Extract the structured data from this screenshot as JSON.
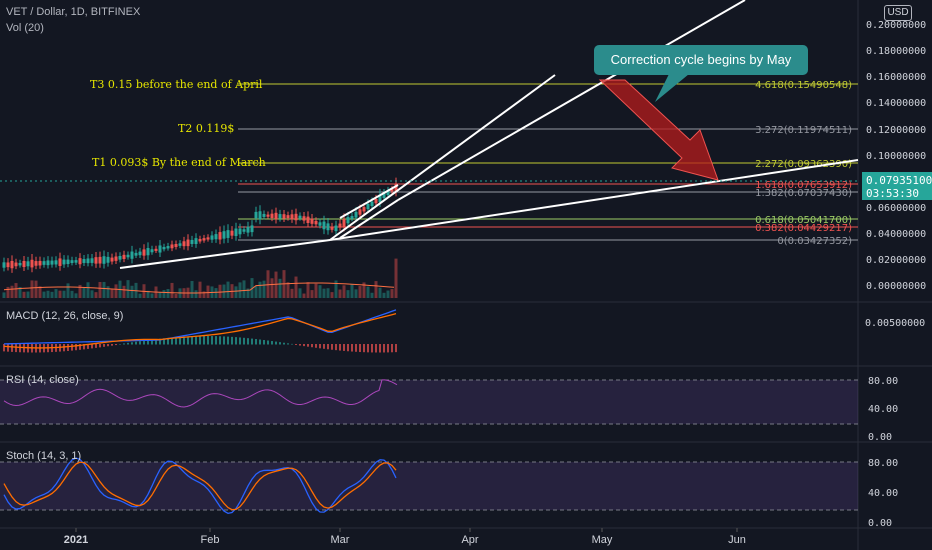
{
  "header": {
    "symbol_line": "VET / Dollar, 1D, BITFINEX",
    "volume_label": "Vol (20)",
    "currency_button": "USD"
  },
  "callout": {
    "text": "Correction cycle begins by May"
  },
  "price_tag": {
    "price": "0.07935100",
    "countdown": "03:53:30"
  },
  "annotations": {
    "t3": "T3 0.15 before the end of April",
    "t2": "T2  0.119$",
    "t1": "T1 0.093$ By the end of March"
  },
  "fib_levels": [
    {
      "label": "4.618(0.15490548)",
      "color": "#c0ca33"
    },
    {
      "label": "3.272(0.11974511)",
      "color": "#9598a1"
    },
    {
      "label": "2.272(0.09362390)",
      "color": "#c0ca33"
    },
    {
      "label": "1.618(0.07653912)",
      "color": "#ef5350"
    },
    {
      "label": "1.382(0.07037430)",
      "color": "#9598a1"
    },
    {
      "label": "0.618(0.05041700)",
      "color": "#9ccc65"
    },
    {
      "label": "0.382(0.04429217)",
      "color": "#ef5350"
    },
    {
      "label": "0(0.03427352)",
      "color": "#9598a1"
    }
  ],
  "price_axis": [
    "0.20000000",
    "0.18000000",
    "0.16000000",
    "0.14000000",
    "0.12000000",
    "0.10000000",
    "0.06000000",
    "0.04000000",
    "0.02000000",
    "0.00000000"
  ],
  "time_axis": [
    "2021",
    "Feb",
    "Mar",
    "Apr",
    "May",
    "Jun"
  ],
  "indicators": {
    "macd": {
      "label": "MACD (12, 26, close, 9)",
      "axis": "0.00500000"
    },
    "rsi": {
      "label": "RSI (14, close)",
      "axis": [
        "80.00",
        "40.00",
        "0.00"
      ]
    },
    "stoch": {
      "label": "Stoch (14, 3, 1)",
      "axis": [
        "80.00",
        "40.00",
        "0.00"
      ]
    }
  },
  "colors": {
    "background": "#131722",
    "up": "#26a69a",
    "down": "#ef5350",
    "callout": "#2b8c8c",
    "annotation": "#e6e600",
    "rsi_band": "#7e57c2",
    "macd_line": "#2962ff",
    "signal_line": "#ff6d00"
  }
}
